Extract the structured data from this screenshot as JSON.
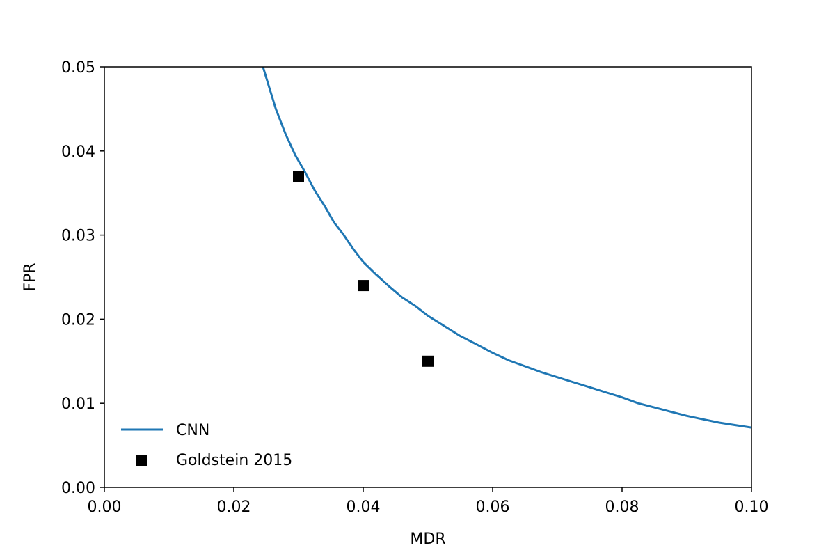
{
  "chart_data": {
    "type": "line",
    "xlabel": "MDR",
    "ylabel": "FPR",
    "xlim": [
      0,
      0.1
    ],
    "ylim": [
      0,
      0.05
    ],
    "x_ticks": [
      "0.00",
      "0.02",
      "0.04",
      "0.06",
      "0.08",
      "0.10"
    ],
    "y_ticks": [
      "0.00",
      "0.01",
      "0.02",
      "0.03",
      "0.04",
      "0.05"
    ],
    "grid": false,
    "legend_position": "lower-left",
    "series": [
      {
        "name": "CNN",
        "kind": "line",
        "color": "#1f77b4",
        "points": [
          [
            0.0245,
            0.05
          ],
          [
            0.0255,
            0.0475
          ],
          [
            0.0265,
            0.045
          ],
          [
            0.028,
            0.042
          ],
          [
            0.0295,
            0.0395
          ],
          [
            0.031,
            0.0375
          ],
          [
            0.0325,
            0.0353
          ],
          [
            0.034,
            0.0335
          ],
          [
            0.0355,
            0.0315
          ],
          [
            0.037,
            0.03
          ],
          [
            0.0385,
            0.0283
          ],
          [
            0.04,
            0.0268
          ],
          [
            0.042,
            0.0253
          ],
          [
            0.044,
            0.0239
          ],
          [
            0.046,
            0.0226
          ],
          [
            0.048,
            0.0216
          ],
          [
            0.05,
            0.0204
          ],
          [
            0.0525,
            0.0192
          ],
          [
            0.055,
            0.018
          ],
          [
            0.0575,
            0.017
          ],
          [
            0.06,
            0.016
          ],
          [
            0.0625,
            0.0151
          ],
          [
            0.065,
            0.0144
          ],
          [
            0.0675,
            0.0137
          ],
          [
            0.07,
            0.0131
          ],
          [
            0.0725,
            0.0125
          ],
          [
            0.075,
            0.0119
          ],
          [
            0.0775,
            0.0113
          ],
          [
            0.08,
            0.0107
          ],
          [
            0.0825,
            0.01
          ],
          [
            0.085,
            0.0095
          ],
          [
            0.0875,
            0.009
          ],
          [
            0.09,
            0.0085
          ],
          [
            0.0925,
            0.0081
          ],
          [
            0.095,
            0.0077
          ],
          [
            0.0975,
            0.0074
          ],
          [
            0.1,
            0.0071
          ]
        ]
      },
      {
        "name": "Goldstein 2015",
        "kind": "scatter",
        "marker": "square",
        "color": "#000000",
        "points": [
          [
            0.03,
            0.037
          ],
          [
            0.04,
            0.024
          ],
          [
            0.05,
            0.015
          ]
        ]
      }
    ]
  }
}
